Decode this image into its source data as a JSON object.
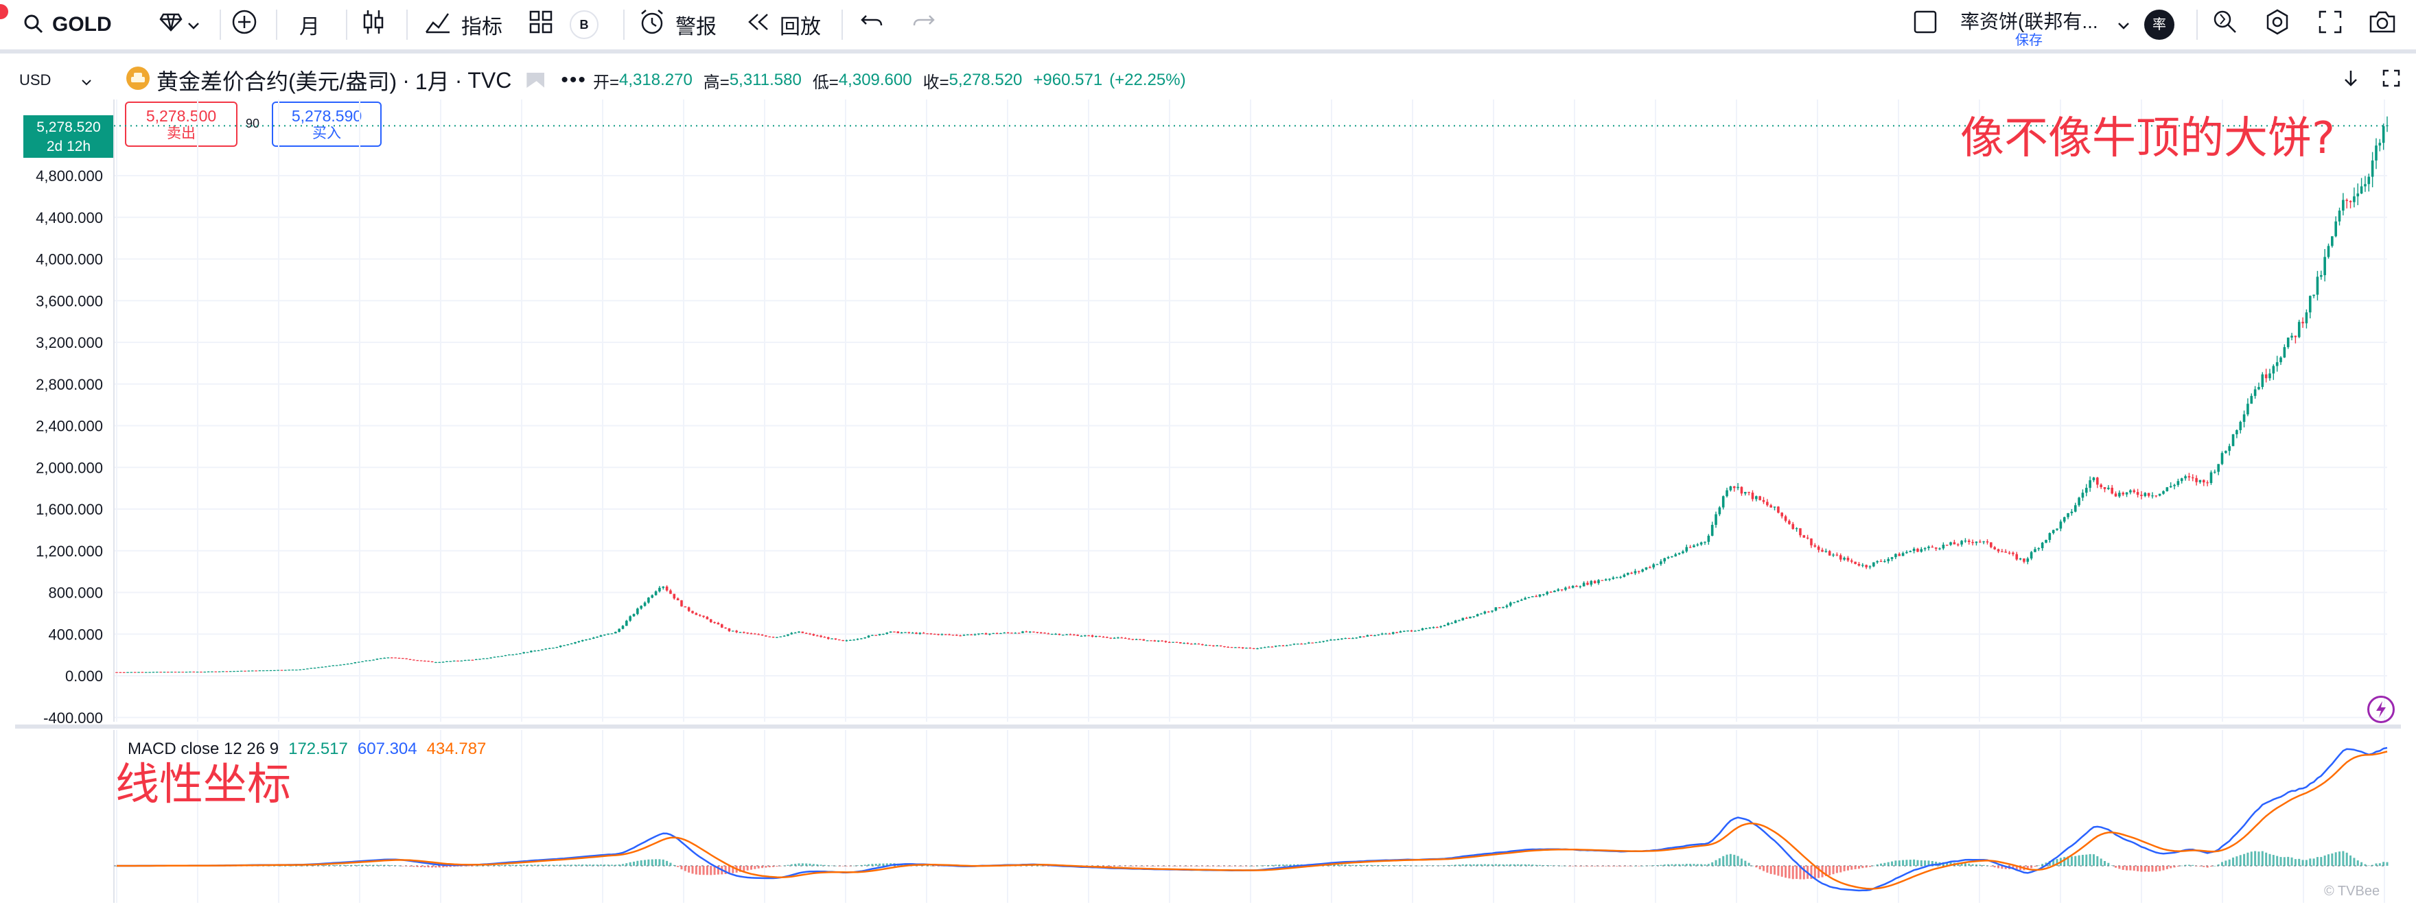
{
  "toolbar": {
    "symbol": "GOLD",
    "interval": "月",
    "indicators_label": "指标",
    "badge_b": "B",
    "alert_label": "警报",
    "replay_label": "回放",
    "layout_name": "率资饼(联邦有...",
    "save_label": "保存",
    "avatar_text": "率"
  },
  "legend": {
    "currency": "USD",
    "title": "黄金差价合约(美元/盎司)",
    "interval": "1月",
    "source": "TVC",
    "open_label": "开=",
    "open": "4,318.270",
    "high_label": "高=",
    "high": "5,311.580",
    "low_label": "低=",
    "low": "4,309.600",
    "close_label": "收=",
    "close": "5,278.520",
    "change": "+960.571",
    "change_pct": "(+22.25%)"
  },
  "trade": {
    "sell_price": "5,278.500",
    "sell_label": "卖出",
    "spread": "90",
    "buy_price": "5,278.590",
    "buy_label": "买入"
  },
  "price_tag": {
    "price": "5,278.520",
    "countdown": "2d 12h"
  },
  "annotations": {
    "top_note": "像不像牛顶的大饼?",
    "bottom_note": "线性坐标"
  },
  "macd": {
    "label": "MACD close 12 26 9",
    "hist": "172.517",
    "macd": "607.304",
    "signal": "434.787"
  },
  "watermark": "© TVBee",
  "colors": {
    "up": "#089981",
    "down": "#f23645",
    "macd_line": "#2962ff",
    "signal_line": "#ff6d00",
    "annotation": "#f23645"
  },
  "chart_data": {
    "type": "line",
    "title": "黄金差价合约(美元/盎司)",
    "xlabel": "",
    "ylabel": "",
    "ylim": [
      -400,
      5400
    ],
    "y_ticks": [
      "-400.000",
      "0.000",
      "400.000",
      "800.000",
      "1,200.000",
      "1,600.000",
      "2,000.000",
      "2,400.000",
      "2,800.000",
      "3,200.000",
      "3,600.000",
      "4,000.000",
      "4,400.000",
      "4,800.000"
    ],
    "x_index_range": [
      0,
      100
    ],
    "series": [
      {
        "values_x": [
          0,
          4,
          8,
          10,
          12,
          14,
          16,
          19,
          22,
          24,
          25,
          27,
          29,
          30,
          32,
          34,
          37,
          40,
          43,
          46,
          50,
          53,
          58,
          63,
          67,
          70,
          71,
          73,
          75,
          77,
          79,
          82,
          84,
          86,
          87,
          88,
          90,
          91,
          92,
          93,
          94,
          95,
          96,
          97,
          98,
          99,
          100
        ],
        "values_y": [
          35,
          40,
          60,
          110,
          180,
          130,
          160,
          260,
          420,
          880,
          650,
          430,
          370,
          420,
          330,
          420,
          390,
          420,
          380,
          330,
          260,
          330,
          460,
          800,
          1000,
          1300,
          1850,
          1600,
          1200,
          1050,
          1200,
          1300,
          1100,
          1550,
          1900,
          1750,
          1750,
          1900,
          1850,
          2200,
          2700,
          3000,
          3300,
          3800,
          4500,
          4750,
          5278.52
        ]
      }
    ]
  }
}
